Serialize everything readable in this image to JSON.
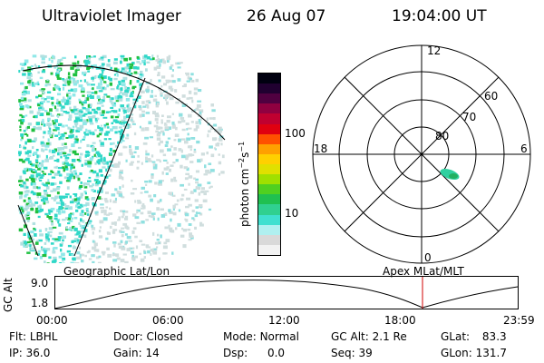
{
  "header": {
    "title": "Ultraviolet Imager",
    "date": "26 Aug 07",
    "time": "19:04:00 UT"
  },
  "colorbar": {
    "unit_text": "photon cm",
    "unit_sup1": "−2",
    "unit_mid": "s",
    "unit_sup2": "−1",
    "ticks": [
      "100",
      "10"
    ],
    "colors": [
      "#f2f2f2",
      "#d9d9d9",
      "#b0f0f0",
      "#40e0d0",
      "#30d090",
      "#20c050",
      "#50d020",
      "#a0e000",
      "#e0e000",
      "#ffd000",
      "#ffa000",
      "#ff5000",
      "#e00010",
      "#c00030",
      "#900040",
      "#500040",
      "#200030",
      "#000010"
    ]
  },
  "polar": {
    "lat_labels": [
      "80",
      "70",
      "60"
    ],
    "mlt_labels": [
      "12",
      "18",
      "6",
      "0"
    ]
  },
  "timeline": {
    "axis_label": "GC Alt",
    "left_caption": "Geographic Lat/Lon",
    "right_caption": "Apex MLat/MLT",
    "y_ticks": [
      "9.0",
      "1.8"
    ],
    "x_ticks": [
      "00:00",
      "06:00",
      "12:00",
      "18:00",
      "23:59"
    ],
    "marker_color": "#d00000"
  },
  "status": {
    "row1": [
      {
        "label": "Flt:",
        "value": "LBHL"
      },
      {
        "label": "Door:",
        "value": "Closed"
      },
      {
        "label": "Mode:",
        "value": "Normal"
      },
      {
        "label": "GC Alt:",
        "value": "2.1 Re"
      },
      {
        "label": "GLat:",
        "value": "83.3"
      }
    ],
    "row2": [
      {
        "label": "IP:",
        "value": "36.0"
      },
      {
        "label": "Gain:",
        "value": "14"
      },
      {
        "label": "Dsp:",
        "value": "0.0"
      },
      {
        "label": "Seq:",
        "value": "39"
      },
      {
        "label": "GLon:",
        "value": "131.7"
      }
    ]
  }
}
